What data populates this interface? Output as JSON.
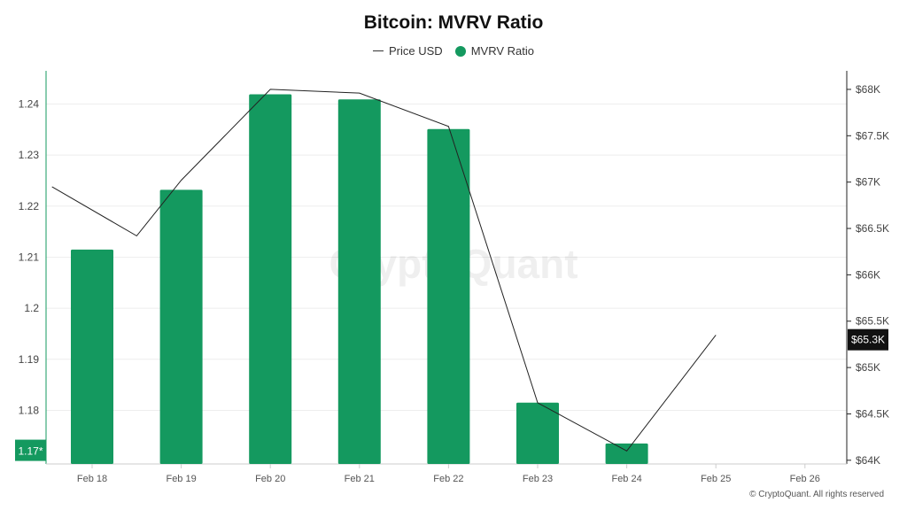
{
  "chart_data": {
    "type": "bar",
    "title": "Bitcoin: MVRV Ratio",
    "categories": [
      "Feb 18",
      "Feb 19",
      "Feb 20",
      "Feb 21",
      "Feb 22",
      "Feb 23",
      "Feb 24",
      "Feb 25",
      "Feb 26"
    ],
    "series": [
      {
        "name": "MVRV Ratio",
        "type": "bar",
        "axis": "left",
        "color": "#14995f",
        "values": [
          1.2115,
          1.2232,
          1.2419,
          1.2409,
          1.2351,
          1.1815,
          1.1735,
          null,
          null
        ]
      },
      {
        "name": "Price USD",
        "type": "line",
        "axis": "right",
        "color": "#222222",
        "x": [
          17.55,
          18.5,
          19.0,
          20.0,
          21.0,
          22.0,
          23.0,
          24.0,
          25.0
        ],
        "values": [
          66950,
          66420,
          67020,
          68000,
          67960,
          67600,
          64620,
          64100,
          65350
        ]
      }
    ],
    "left_axis": {
      "ylim": [
        1.1695,
        1.2465
      ],
      "ticks": [
        1.18,
        1.19,
        1.2,
        1.21,
        1.22,
        1.23,
        1.24
      ],
      "tick_labels": [
        "1.18",
        "1.19",
        "1.2",
        "1.21",
        "1.22",
        "1.23",
        "1.24"
      ]
    },
    "right_axis": {
      "ylim": [
        63960,
        68200
      ],
      "ticks": [
        64000,
        64500,
        65000,
        65500,
        66000,
        66500,
        67000,
        67500,
        68000
      ],
      "tick_labels": [
        "$64K",
        "$64.5K",
        "$65K",
        "$65.5K",
        "$66K",
        "$66.5K",
        "$67K",
        "$67.5K",
        "$68K"
      ]
    },
    "current_left_label": "1.17*",
    "current_left_value": 1.172,
    "current_right_label": "$65.3K",
    "current_right_value": 65300,
    "legend": {
      "placement": "top-center",
      "entries": [
        "Price USD",
        "MVRV Ratio"
      ]
    },
    "grid": true,
    "watermark": "CryptoQuant",
    "copyright": "© CryptoQuant. All rights reserved"
  }
}
